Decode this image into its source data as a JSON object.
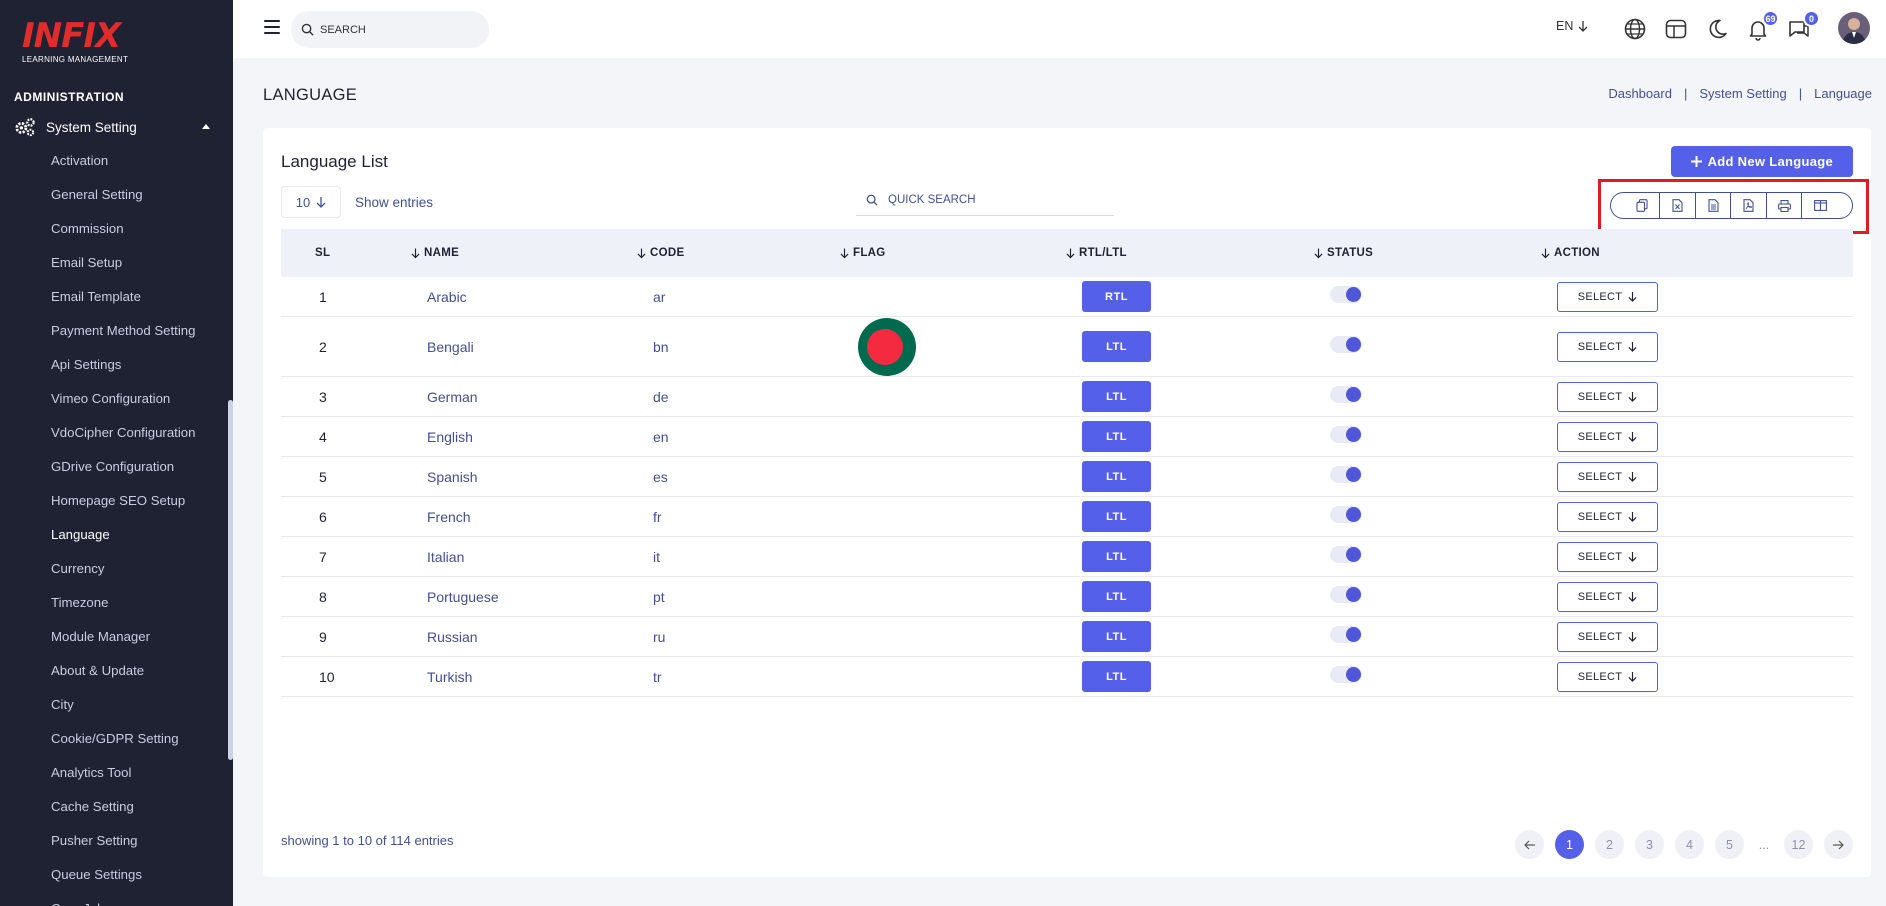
{
  "logo": {
    "main": "INFIX",
    "sub": "LEARNING MANAGEMENT"
  },
  "sidebar": {
    "section": "ADMINISTRATION",
    "group": "System Setting",
    "items": [
      "Activation",
      "General Setting",
      "Commission",
      "Email Setup",
      "Email Template",
      "Payment Method Setting",
      "Api Settings",
      "Vimeo Configuration",
      "VdoCipher Configuration",
      "GDrive Configuration",
      "Homepage SEO Setup",
      "Language",
      "Currency",
      "Timezone",
      "Module Manager",
      "About & Update",
      "City",
      "Cookie/GDPR Setting",
      "Analytics Tool",
      "Cache Setting",
      "Pusher Setting",
      "Queue Settings",
      "Cron Job"
    ],
    "active": "Language"
  },
  "topbar": {
    "search_placeholder": "SEARCH",
    "lang": "EN",
    "notifications_count": "69",
    "messages_count": "0"
  },
  "page": {
    "title": "LANGUAGE",
    "breadcrumb": [
      "Dashboard",
      "System Setting",
      "Language"
    ]
  },
  "card": {
    "title": "Language List",
    "add_button": "Add New Language",
    "entries_value": "10",
    "entries_label": "Show entries",
    "quick_search_placeholder": "QUICK SEARCH"
  },
  "table": {
    "headers": {
      "sl": "SL",
      "name": "NAME",
      "code": "CODE",
      "flag": "FLAG",
      "direction": "RTL/LTL",
      "status": "STATUS",
      "action": "ACTION"
    },
    "rows": [
      {
        "sl": "1",
        "name": "Arabic",
        "code": "ar",
        "direction": "RTL",
        "action": "SELECT"
      },
      {
        "sl": "2",
        "name": "Bengali",
        "code": "bn",
        "direction": "LTL",
        "action": "SELECT"
      },
      {
        "sl": "3",
        "name": "German",
        "code": "de",
        "direction": "LTL",
        "action": "SELECT"
      },
      {
        "sl": "4",
        "name": "English",
        "code": "en",
        "direction": "LTL",
        "action": "SELECT"
      },
      {
        "sl": "5",
        "name": "Spanish",
        "code": "es",
        "direction": "LTL",
        "action": "SELECT"
      },
      {
        "sl": "6",
        "name": "French",
        "code": "fr",
        "direction": "LTL",
        "action": "SELECT"
      },
      {
        "sl": "7",
        "name": "Italian",
        "code": "it",
        "direction": "LTL",
        "action": "SELECT"
      },
      {
        "sl": "8",
        "name": "Portuguese",
        "code": "pt",
        "direction": "LTL",
        "action": "SELECT"
      },
      {
        "sl": "9",
        "name": "Russian",
        "code": "ru",
        "direction": "LTL",
        "action": "SELECT"
      },
      {
        "sl": "10",
        "name": "Turkish",
        "code": "tr",
        "direction": "LTL",
        "action": "SELECT"
      }
    ]
  },
  "footer": {
    "showing": "showing 1 to 10 of 114 entries",
    "pages": [
      "1",
      "2",
      "3",
      "4",
      "5",
      "...",
      "12"
    ],
    "current_page": "1"
  },
  "colors": {
    "primary": "#5560e8",
    "sidebar": "#1e2233",
    "text": "#415094",
    "highlight": "#e01b24"
  }
}
